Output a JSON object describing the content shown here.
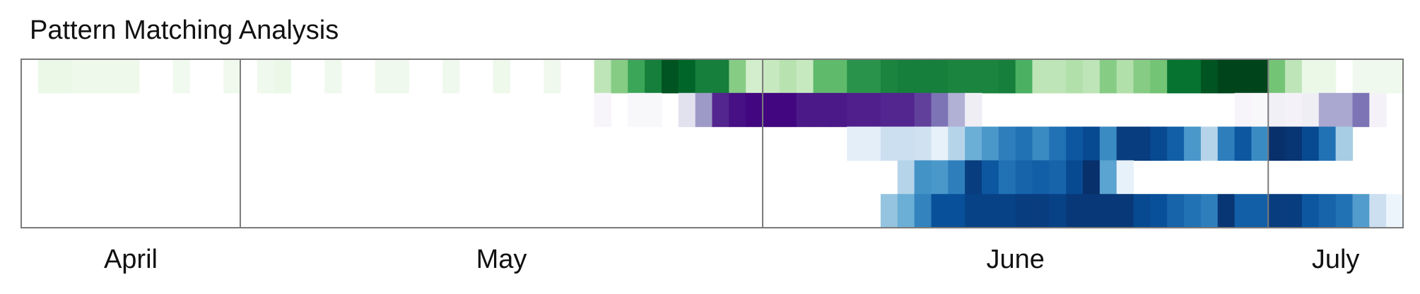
{
  "chart_data": {
    "type": "heatmap",
    "title": "Pattern Matching Analysis",
    "x_axis": {
      "months": [
        {
          "label": "April",
          "start_day": 0,
          "end_day": 13
        },
        {
          "label": "May",
          "start_day": 13,
          "end_day": 44
        },
        {
          "label": "June",
          "start_day": 44,
          "end_day": 74
        },
        {
          "label": "July",
          "start_day": 74,
          "end_day": 82
        }
      ],
      "total_days": 82,
      "month_separators": true
    },
    "rows": [
      {
        "colormap": "Greens",
        "values": [
          0,
          0.08,
          0.08,
          0.06,
          0.06,
          0.06,
          0.06,
          0,
          0,
          0.04,
          0,
          0,
          0.05,
          0,
          0.05,
          0.08,
          0,
          0,
          0.05,
          0,
          0,
          0.05,
          0.05,
          0,
          0,
          0.05,
          0,
          0,
          0.06,
          0,
          0,
          0.05,
          0,
          0,
          0.28,
          0.45,
          0.65,
          0.8,
          0.95,
          0.9,
          0.8,
          0.8,
          0.45,
          0.2,
          0.25,
          0.3,
          0.25,
          0.55,
          0.55,
          0.72,
          0.72,
          0.78,
          0.8,
          0.8,
          0.8,
          0.78,
          0.78,
          0.78,
          0.8,
          0.6,
          0.28,
          0.28,
          0.32,
          0.28,
          0.45,
          0.32,
          0.45,
          0.5,
          0.85,
          0.85,
          0.95,
          1.0,
          1.0,
          1.0,
          0.5,
          0.28,
          0.08,
          0.08,
          0,
          0.05,
          0.05,
          0.05
        ]
      },
      {
        "colormap": "Purples",
        "values": [
          0,
          0,
          0,
          0,
          0,
          0,
          0,
          0,
          0,
          0,
          0,
          0,
          0,
          0,
          0,
          0,
          0,
          0,
          0,
          0,
          0,
          0,
          0,
          0,
          0,
          0,
          0,
          0,
          0,
          0,
          0,
          0,
          0,
          0,
          0.05,
          0,
          0.04,
          0.04,
          0,
          0.2,
          0.5,
          0.88,
          0.95,
          0.98,
          0.98,
          0.98,
          0.92,
          0.92,
          0.92,
          0.9,
          0.9,
          0.88,
          0.88,
          0.8,
          0.65,
          0.42,
          0.12,
          0,
          0,
          0,
          0,
          0,
          0,
          0,
          0,
          0,
          0,
          0,
          0,
          0,
          0,
          0,
          0.05,
          0.04,
          0.1,
          0.08,
          0.12,
          0.45,
          0.45,
          0.65,
          0.08,
          0
        ]
      },
      {
        "colormap": "Blues",
        "values": [
          0,
          0,
          0,
          0,
          0,
          0,
          0,
          0,
          0,
          0,
          0,
          0,
          0,
          0,
          0,
          0,
          0,
          0,
          0,
          0,
          0,
          0,
          0,
          0,
          0,
          0,
          0,
          0,
          0,
          0,
          0,
          0,
          0,
          0,
          0,
          0,
          0,
          0,
          0,
          0,
          0,
          0,
          0,
          0,
          0,
          0,
          0,
          0,
          0,
          0.1,
          0.1,
          0.22,
          0.22,
          0.2,
          0.08,
          0.3,
          0.5,
          0.6,
          0.7,
          0.75,
          0.65,
          0.75,
          0.85,
          0.9,
          0.65,
          0.95,
          0.95,
          0.9,
          0.82,
          0.6,
          0.3,
          0.7,
          0.85,
          0.65,
          1.0,
          0.98,
          0.9,
          0.75,
          0.35,
          0,
          0,
          0
        ]
      },
      {
        "colormap": "Blues",
        "values": [
          0,
          0,
          0,
          0,
          0,
          0,
          0,
          0,
          0,
          0,
          0,
          0,
          0,
          0,
          0,
          0,
          0,
          0,
          0,
          0,
          0,
          0,
          0,
          0,
          0,
          0,
          0,
          0,
          0,
          0,
          0,
          0,
          0,
          0,
          0,
          0,
          0,
          0,
          0,
          0,
          0,
          0,
          0,
          0,
          0,
          0,
          0,
          0,
          0,
          0,
          0,
          0,
          0.3,
          0.62,
          0.6,
          0.7,
          0.95,
          0.85,
          0.75,
          0.8,
          0.82,
          0.8,
          0.9,
          1.0,
          0.55,
          0.08,
          0,
          0,
          0,
          0,
          0,
          0,
          0,
          0,
          0,
          0,
          0,
          0,
          0,
          0,
          0,
          0
        ]
      },
      {
        "colormap": "Blues",
        "values": [
          0,
          0,
          0,
          0,
          0,
          0,
          0,
          0,
          0,
          0,
          0,
          0,
          0,
          0,
          0,
          0,
          0,
          0,
          0,
          0,
          0,
          0,
          0,
          0,
          0,
          0,
          0,
          0,
          0,
          0,
          0,
          0,
          0,
          0,
          0,
          0,
          0,
          0,
          0,
          0,
          0,
          0,
          0,
          0,
          0,
          0,
          0,
          0,
          0,
          0,
          0,
          0.4,
          0.5,
          0.68,
          0.88,
          0.88,
          0.93,
          0.93,
          0.93,
          0.95,
          0.95,
          0.93,
          0.97,
          0.97,
          0.97,
          0.97,
          0.9,
          0.88,
          0.8,
          0.75,
          0.7,
          0.98,
          0.82,
          0.82,
          0.95,
          0.95,
          0.85,
          0.8,
          0.75,
          0.58,
          0.22,
          0.05
        ]
      }
    ]
  }
}
